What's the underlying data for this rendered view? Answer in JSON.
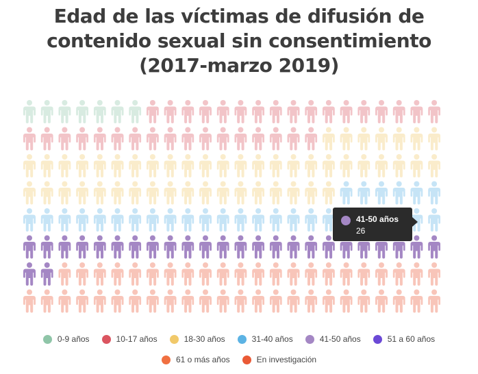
{
  "chart": {
    "title_lines": [
      "Edad de las víctimas de difusión de",
      "contenido sexual sin consentimiento",
      "(2017-marzo 2019)"
    ]
  },
  "chart_data": {
    "type": "waffle",
    "title": "Edad de las víctimas de difusión de contenido sexual sin consentimiento (2017-marzo 2019)",
    "columns": 24,
    "rows": 8,
    "categories": [
      "0-9 años",
      "10-17 años",
      "18-30 años",
      "31-40 años",
      "41-50 años",
      "51 a 60 años",
      "61 o más años",
      "En investigación"
    ],
    "values": [
      7,
      34,
      49,
      30,
      26,
      0,
      0,
      46
    ],
    "colors": [
      "#8fc5a8",
      "#db5560",
      "#f1c96a",
      "#5cb3e4",
      "#a487c4",
      "#6b49d6",
      "#f07041",
      "#ea5a36"
    ],
    "icon_opacity": 0.35,
    "highlight": {
      "category": "41-50 años",
      "value": "26"
    },
    "legend_position": "bottom"
  },
  "tooltip": {
    "label": "41-50 años",
    "value": "26",
    "color": "#a487c4"
  },
  "legend": [
    {
      "label": "0-9 años",
      "color": "#8fc5a8"
    },
    {
      "label": "10-17 años",
      "color": "#db5560"
    },
    {
      "label": "18-30 años",
      "color": "#f1c96a"
    },
    {
      "label": "31-40 años",
      "color": "#5cb3e4"
    },
    {
      "label": "41-50 años",
      "color": "#a487c4"
    },
    {
      "label": "51 a 60 años",
      "color": "#6b49d6"
    },
    {
      "label": "61 o más años",
      "color": "#f07041"
    },
    {
      "label": "En investigación",
      "color": "#ea5a36"
    }
  ],
  "icons": {
    "person": "person-icon"
  }
}
